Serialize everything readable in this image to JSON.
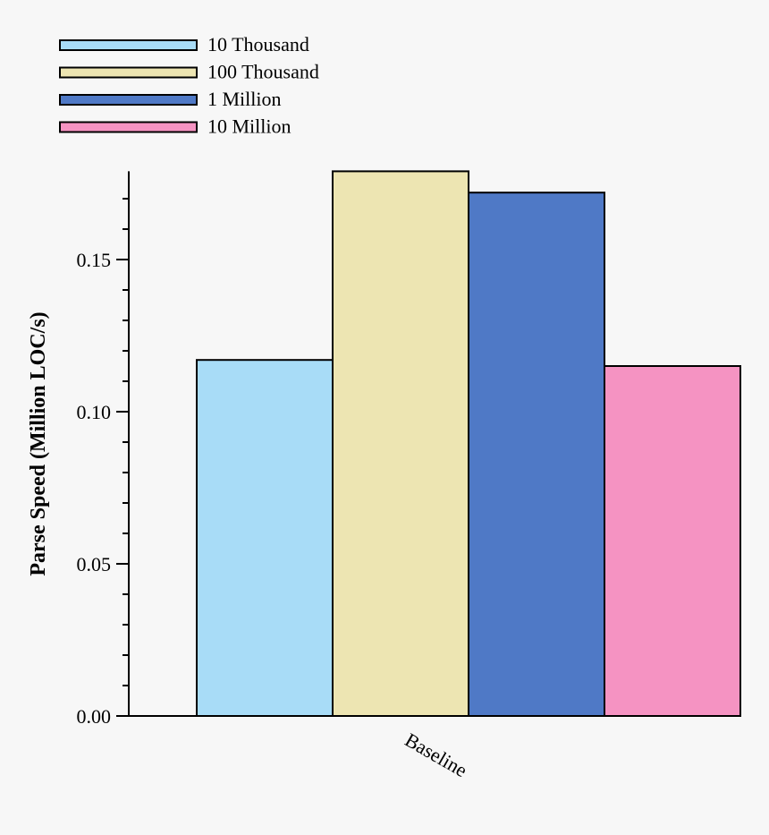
{
  "chart_data": {
    "type": "bar",
    "categories": [
      "Baseline"
    ],
    "series": [
      {
        "name": "10 Thousand",
        "values": [
          0.117
        ],
        "color": "#a8dcf7"
      },
      {
        "name": "100 Thousand",
        "values": [
          0.179
        ],
        "color": "#ede5b2"
      },
      {
        "name": "1 Million",
        "values": [
          0.172
        ],
        "color": "#4f79c6"
      },
      {
        "name": "10 Million",
        "values": [
          0.115
        ],
        "color": "#f593c2"
      }
    ],
    "title": "",
    "xlabel": "",
    "ylabel": "Parse Speed (Million LOC/s)",
    "ylim": [
      0,
      0.179
    ],
    "yticks": [
      "0.00",
      "0.05",
      "0.10",
      "0.15"
    ],
    "ytick_values": [
      0,
      0.05,
      0.1,
      0.15
    ],
    "minor_tick_step": 0.01,
    "grid": false,
    "legend_placement": "top-left",
    "bar_outline_color": "#000000"
  }
}
